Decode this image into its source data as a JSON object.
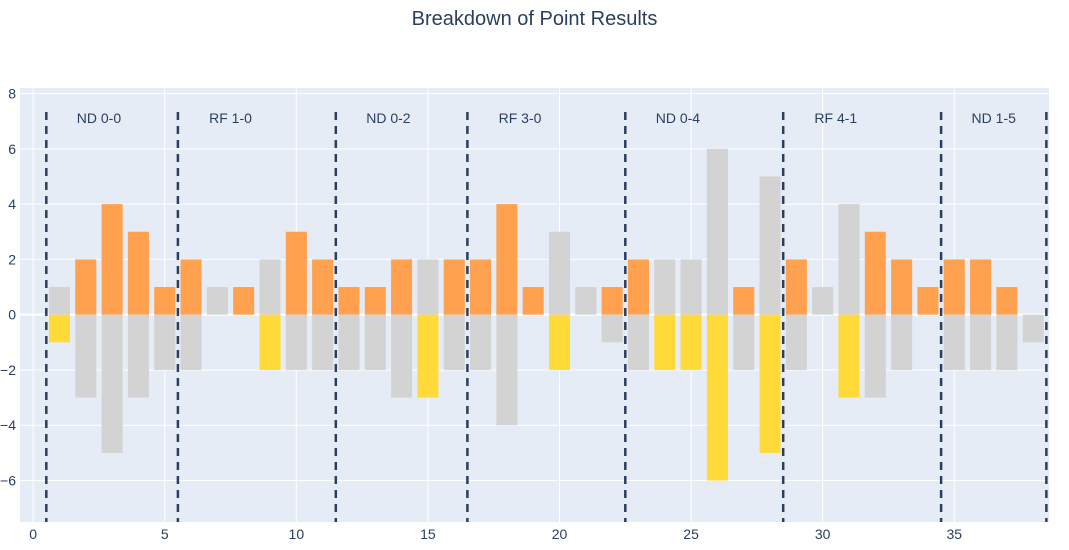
{
  "chart_data": {
    "type": "bar",
    "title": "Breakdown of Point Results",
    "xlabel": "",
    "ylabel": "",
    "barmode": "relative",
    "xlim": [
      -0.5,
      38.6
    ],
    "ylim": [
      -7.5,
      8.2
    ],
    "x_ticks": [
      0,
      5,
      10,
      15,
      20,
      25,
      30,
      35
    ],
    "y_ticks": [
      -6,
      -4,
      -2,
      0,
      2,
      4,
      6,
      8
    ],
    "grid": true,
    "legend": "none",
    "colors": {
      "background": "#e5ecf6",
      "grid": "#ffffff",
      "orange": "#ffa14f",
      "yellow": "#ffda38",
      "gray": "#d3d3d3",
      "divider": "#2a3f5f",
      "text": "#2a3f5f"
    },
    "bars": [
      {
        "x": 1,
        "value": 1,
        "color": "gray"
      },
      {
        "x": 1,
        "value": -1,
        "color": "yellow"
      },
      {
        "x": 2,
        "value": 2,
        "color": "orange"
      },
      {
        "x": 2,
        "value": -3,
        "color": "gray"
      },
      {
        "x": 3,
        "value": 4,
        "color": "orange"
      },
      {
        "x": 3,
        "value": -5,
        "color": "gray"
      },
      {
        "x": 4,
        "value": 3,
        "color": "orange"
      },
      {
        "x": 4,
        "value": -3,
        "color": "gray"
      },
      {
        "x": 5,
        "value": 1,
        "color": "orange"
      },
      {
        "x": 5,
        "value": -2,
        "color": "gray"
      },
      {
        "x": 6,
        "value": 2,
        "color": "orange"
      },
      {
        "x": 6,
        "value": -2,
        "color": "gray"
      },
      {
        "x": 7,
        "value": 1,
        "color": "gray"
      },
      {
        "x": 8,
        "value": 1,
        "color": "orange"
      },
      {
        "x": 9,
        "value": 2,
        "color": "gray"
      },
      {
        "x": 9,
        "value": -2,
        "color": "yellow"
      },
      {
        "x": 10,
        "value": 3,
        "color": "orange"
      },
      {
        "x": 10,
        "value": -2,
        "color": "gray"
      },
      {
        "x": 11,
        "value": 2,
        "color": "orange"
      },
      {
        "x": 11,
        "value": -2,
        "color": "gray"
      },
      {
        "x": 12,
        "value": 1,
        "color": "orange"
      },
      {
        "x": 12,
        "value": -2,
        "color": "gray"
      },
      {
        "x": 13,
        "value": 1,
        "color": "orange"
      },
      {
        "x": 13,
        "value": -2,
        "color": "gray"
      },
      {
        "x": 14,
        "value": 2,
        "color": "orange"
      },
      {
        "x": 14,
        "value": -3,
        "color": "gray"
      },
      {
        "x": 15,
        "value": 2,
        "color": "gray"
      },
      {
        "x": 15,
        "value": -3,
        "color": "yellow"
      },
      {
        "x": 16,
        "value": 2,
        "color": "orange"
      },
      {
        "x": 16,
        "value": -2,
        "color": "gray"
      },
      {
        "x": 17,
        "value": 2,
        "color": "orange"
      },
      {
        "x": 17,
        "value": -2,
        "color": "gray"
      },
      {
        "x": 18,
        "value": 4,
        "color": "orange"
      },
      {
        "x": 18,
        "value": -4,
        "color": "gray"
      },
      {
        "x": 19,
        "value": 1,
        "color": "orange"
      },
      {
        "x": 20,
        "value": 3,
        "color": "gray"
      },
      {
        "x": 20,
        "value": -2,
        "color": "yellow"
      },
      {
        "x": 21,
        "value": 1,
        "color": "gray"
      },
      {
        "x": 22,
        "value": 1,
        "color": "orange"
      },
      {
        "x": 22,
        "value": -1,
        "color": "gray"
      },
      {
        "x": 23,
        "value": 2,
        "color": "orange"
      },
      {
        "x": 23,
        "value": -2,
        "color": "gray"
      },
      {
        "x": 24,
        "value": 2,
        "color": "gray"
      },
      {
        "x": 24,
        "value": -2,
        "color": "yellow"
      },
      {
        "x": 25,
        "value": 2,
        "color": "gray"
      },
      {
        "x": 25,
        "value": -2,
        "color": "yellow"
      },
      {
        "x": 26,
        "value": 6,
        "color": "gray"
      },
      {
        "x": 26,
        "value": -6,
        "color": "yellow"
      },
      {
        "x": 27,
        "value": 1,
        "color": "orange"
      },
      {
        "x": 27,
        "value": -2,
        "color": "gray"
      },
      {
        "x": 28,
        "value": 5,
        "color": "gray"
      },
      {
        "x": 28,
        "value": -5,
        "color": "yellow"
      },
      {
        "x": 29,
        "value": 2,
        "color": "orange"
      },
      {
        "x": 29,
        "value": -2,
        "color": "gray"
      },
      {
        "x": 30,
        "value": 1,
        "color": "gray"
      },
      {
        "x": 31,
        "value": 4,
        "color": "gray"
      },
      {
        "x": 31,
        "value": -3,
        "color": "yellow"
      },
      {
        "x": 32,
        "value": 3,
        "color": "orange"
      },
      {
        "x": 32,
        "value": -3,
        "color": "gray"
      },
      {
        "x": 33,
        "value": 2,
        "color": "orange"
      },
      {
        "x": 33,
        "value": -2,
        "color": "gray"
      },
      {
        "x": 34,
        "value": 1,
        "color": "orange"
      },
      {
        "x": 35,
        "value": 2,
        "color": "orange"
      },
      {
        "x": 35,
        "value": -2,
        "color": "gray"
      },
      {
        "x": 36,
        "value": 2,
        "color": "orange"
      },
      {
        "x": 36,
        "value": -2,
        "color": "gray"
      },
      {
        "x": 37,
        "value": 1,
        "color": "orange"
      },
      {
        "x": 37,
        "value": -2,
        "color": "gray"
      },
      {
        "x": 38,
        "value": -1,
        "color": "gray"
      }
    ],
    "dividers": [
      0.5,
      5.5,
      11.5,
      16.5,
      22.5,
      28.5,
      34.5,
      38.5
    ],
    "annotations": [
      {
        "text": "ND 0-0",
        "x": 2.5
      },
      {
        "text": "RF 1-0",
        "x": 7.5
      },
      {
        "text": "ND 0-2",
        "x": 13.5
      },
      {
        "text": "RF 3-0",
        "x": 18.5
      },
      {
        "text": "ND 0-4",
        "x": 24.5
      },
      {
        "text": "RF 4-1",
        "x": 30.5
      },
      {
        "text": "ND 1-5",
        "x": 36.5
      }
    ]
  }
}
